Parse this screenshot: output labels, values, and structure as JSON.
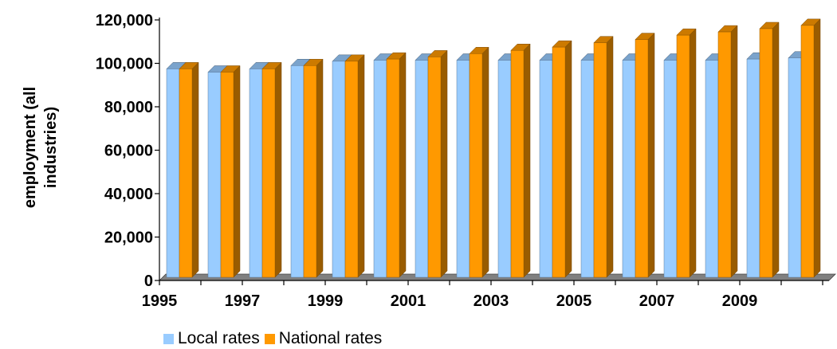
{
  "chart_data": {
    "type": "bar",
    "style": "3d-clustered-column",
    "categories": [
      "1995",
      "1996",
      "1997",
      "1998",
      "1999",
      "2000",
      "2001",
      "2002",
      "2003",
      "2004",
      "2005",
      "2006",
      "2007",
      "2008",
      "2009",
      "2010"
    ],
    "x_tick_labels": [
      "1995",
      "",
      "1997",
      "",
      "1999",
      "",
      "2001",
      "",
      "2003",
      "",
      "2005",
      "",
      "2007",
      "",
      "2009",
      ""
    ],
    "series": [
      {
        "name": "Local rates",
        "color": "#99ccff",
        "values": [
          96000,
          94500,
          96000,
          97500,
          99500,
          100000,
          100000,
          100000,
          100000,
          100000,
          100000,
          100000,
          100000,
          100000,
          100500,
          101000
        ]
      },
      {
        "name": "National rates",
        "color": "#ff9900",
        "values": [
          96000,
          94500,
          96000,
          97500,
          99500,
          100500,
          101500,
          103000,
          104500,
          106000,
          108000,
          109500,
          111500,
          113000,
          114500,
          116000
        ]
      }
    ],
    "ylabel_lines": [
      "employment (all",
      "industries)"
    ],
    "ylim": [
      0,
      120000
    ],
    "yticks": [
      0,
      20000,
      40000,
      60000,
      80000,
      100000,
      120000
    ],
    "ytick_labels": [
      "0",
      "20,000",
      "40,000",
      "60,000",
      "80,000",
      "100,000",
      "120,000"
    ],
    "grid": false,
    "legend_position": "bottom-left"
  }
}
